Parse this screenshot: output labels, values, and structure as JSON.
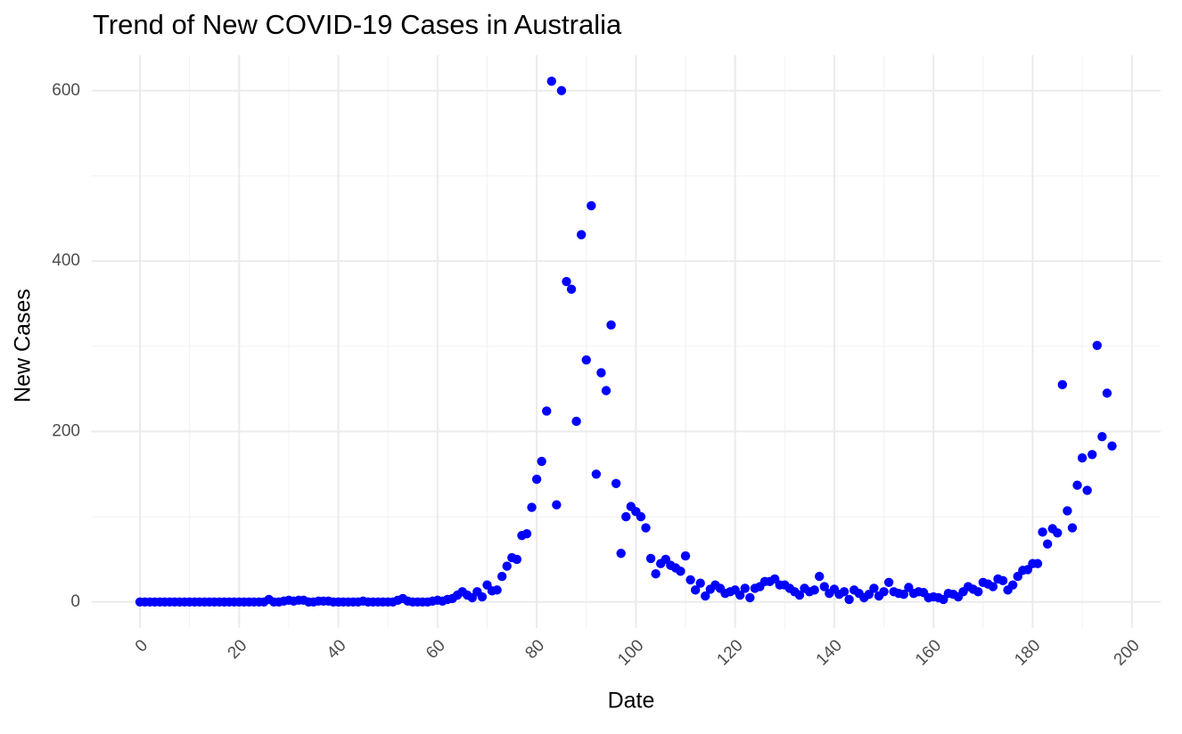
{
  "chart_data": {
    "type": "scatter",
    "title": "Trend of New COVID-19 Cases in Australia",
    "x_label": "Date",
    "y_label": "New Cases",
    "color": "#0000ff",
    "grid": true,
    "xlim": [
      -9.8,
      205.8
    ],
    "ylim": [
      -30.55,
      641.55
    ],
    "xticks": [
      0,
      20,
      40,
      60,
      80,
      100,
      120,
      140,
      160,
      180,
      200
    ],
    "yticks": [
      0,
      200,
      400,
      600
    ],
    "x": [
      0,
      1,
      2,
      3,
      4,
      5,
      6,
      7,
      8,
      9,
      10,
      11,
      12,
      13,
      14,
      15,
      16,
      17,
      18,
      19,
      20,
      21,
      22,
      23,
      24,
      25,
      26,
      27,
      28,
      29,
      30,
      31,
      32,
      33,
      34,
      35,
      36,
      37,
      38,
      39,
      40,
      41,
      42,
      43,
      44,
      45,
      46,
      47,
      48,
      49,
      50,
      51,
      52,
      53,
      54,
      55,
      56,
      57,
      58,
      59,
      60,
      61,
      62,
      63,
      64,
      65,
      66,
      67,
      68,
      69,
      70,
      71,
      72,
      73,
      74,
      75,
      76,
      77,
      78,
      79,
      80,
      81,
      82,
      83,
      84,
      85,
      86,
      87,
      88,
      89,
      90,
      91,
      92,
      93,
      94,
      95,
      96,
      97,
      98,
      99,
      100,
      101,
      102,
      103,
      104,
      105,
      106,
      107,
      108,
      109,
      110,
      111,
      112,
      113,
      114,
      115,
      116,
      117,
      118,
      119,
      120,
      121,
      122,
      123,
      124,
      125,
      126,
      127,
      128,
      129,
      130,
      131,
      132,
      133,
      134,
      135,
      136,
      137,
      138,
      139,
      140,
      141,
      142,
      143,
      144,
      145,
      146,
      147,
      148,
      149,
      150,
      151,
      152,
      153,
      154,
      155,
      156,
      157,
      158,
      159,
      160,
      161,
      162,
      163,
      164,
      165,
      166,
      167,
      168,
      169,
      170,
      171,
      172,
      173,
      174,
      175,
      176,
      177,
      178,
      179,
      180,
      181,
      182,
      183,
      184,
      185,
      186,
      187,
      188,
      189,
      190,
      191,
      192,
      193,
      194,
      195,
      196
    ],
    "values": [
      0,
      0,
      0,
      0,
      0,
      0,
      0,
      0,
      0,
      0,
      0,
      0,
      0,
      0,
      0,
      0,
      0,
      0,
      0,
      0,
      0,
      0,
      0,
      0,
      0,
      0,
      3,
      0,
      0,
      1,
      2,
      1,
      2,
      2,
      0,
      0,
      1,
      1,
      1,
      0,
      0,
      0,
      0,
      0,
      0,
      1,
      0,
      0,
      0,
      0,
      0,
      0,
      2,
      4,
      1,
      0,
      0,
      0,
      0,
      1,
      2,
      1,
      3,
      4,
      8,
      12,
      8,
      5,
      12,
      6,
      20,
      13,
      14,
      30,
      42,
      52,
      50,
      78,
      80,
      111,
      144,
      165,
      224,
      611,
      114,
      600,
      376,
      367,
      212,
      431,
      284,
      465,
      150,
      269,
      248,
      325,
      139,
      57,
      100,
      112,
      106,
      100,
      87,
      51,
      33,
      45,
      50,
      43,
      40,
      36,
      54,
      26,
      14,
      22,
      7,
      15,
      20,
      16,
      10,
      12,
      14,
      8,
      16,
      5,
      16,
      18,
      24,
      24,
      27,
      20,
      20,
      16,
      12,
      8,
      16,
      12,
      14,
      30,
      18,
      10,
      15,
      9,
      12,
      3,
      14,
      10,
      5,
      9,
      16,
      7,
      12,
      23,
      12,
      10,
      9,
      17,
      10,
      12,
      11,
      5,
      6,
      5,
      3,
      10,
      9,
      6,
      12,
      18,
      15,
      12,
      23,
      21,
      18,
      27,
      25,
      14,
      20,
      30,
      37,
      38,
      45,
      45,
      82,
      68,
      86,
      81,
      255,
      107,
      87,
      137,
      169,
      131,
      173,
      301,
      194,
      245,
      183
    ]
  }
}
